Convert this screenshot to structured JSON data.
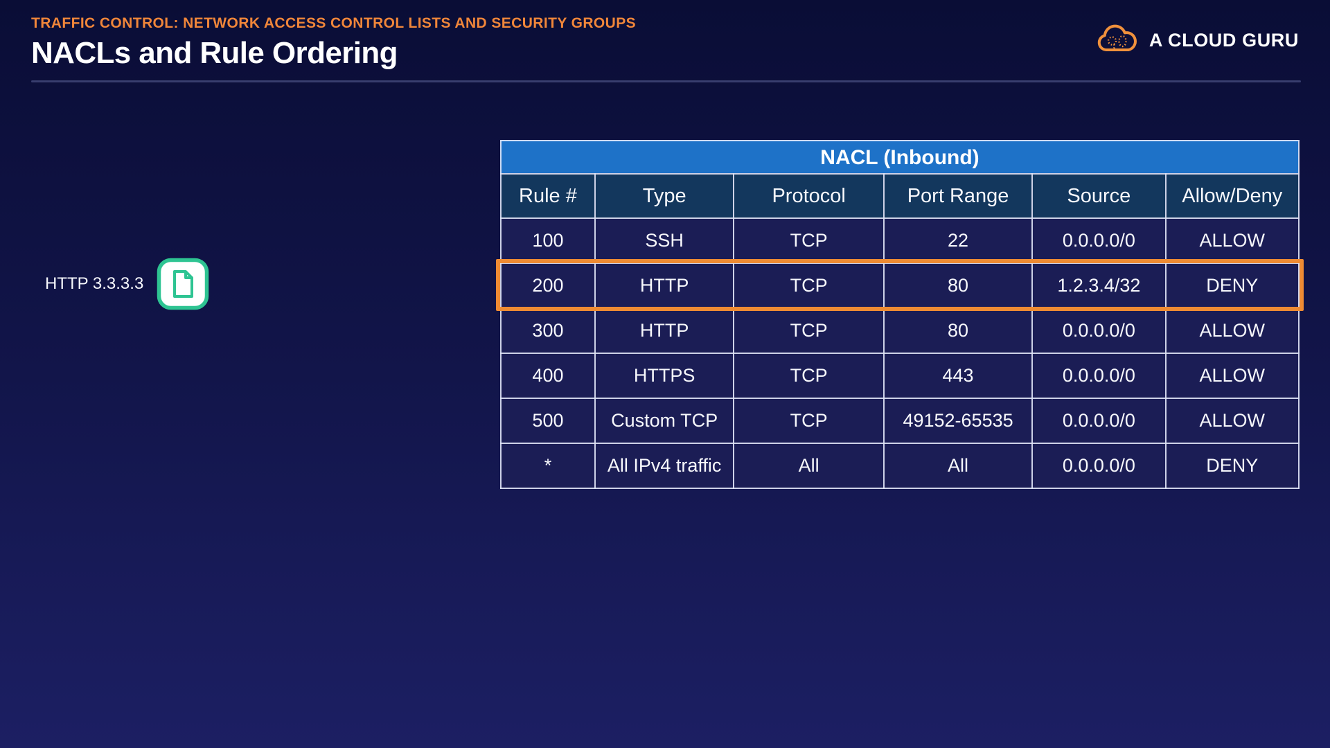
{
  "page": {
    "eyebrow": "TRAFFIC CONTROL: NETWORK ACCESS CONTROL LISTS AND SECURITY GROUPS",
    "eyebrow_color": "#F0863A",
    "title": "NACLs and Rule Ordering"
  },
  "logo": {
    "text": "A CLOUD GURU",
    "icon": "cloud-icon",
    "color": "#F0913C"
  },
  "diagram": {
    "label": "HTTP 3.3.3.3",
    "icon": "document-icon",
    "icon_color": "#2EC492"
  },
  "table": {
    "title": "NACL (Inbound)",
    "columns": [
      "Rule #",
      "Type",
      "Protocol",
      "Port Range",
      "Source",
      "Allow/Deny"
    ],
    "rows": [
      [
        "100",
        "SSH",
        "TCP",
        "22",
        "0.0.0.0/0",
        "ALLOW"
      ],
      [
        "200",
        "HTTP",
        "TCP",
        "80",
        "1.2.3.4/32",
        "DENY"
      ],
      [
        "300",
        "HTTP",
        "TCP",
        "80",
        "0.0.0.0/0",
        "ALLOW"
      ],
      [
        "400",
        "HTTPS",
        "TCP",
        "443",
        "0.0.0.0/0",
        "ALLOW"
      ],
      [
        "500",
        "Custom TCP",
        "TCP",
        "49152-65535",
        "0.0.0.0/0",
        "ALLOW"
      ],
      [
        "*",
        "All IPv4 traffic",
        "All",
        "All",
        "0.0.0.0/0",
        "DENY"
      ]
    ],
    "highlighted_row_index": 1,
    "colors": {
      "title_bar": "#1E72C8",
      "header_row": "#13375D",
      "body_cell": "#1B1D55",
      "highlight_border": "#EE8B33"
    }
  }
}
